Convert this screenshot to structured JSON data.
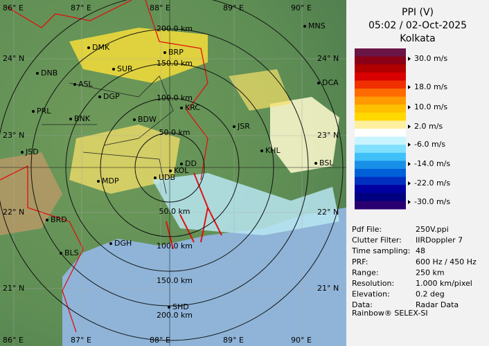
{
  "map": {
    "lon_labels": [
      "86° E",
      "87° E",
      "88° E",
      "89° E",
      "90° E"
    ],
    "lat_labels": [
      "24° N",
      "23° N",
      "22° N",
      "21° N"
    ],
    "ring_labels": [
      "50.0 km",
      "100.0 km",
      "150.0 km",
      "200.0 km"
    ],
    "cities": [
      "MNS",
      "DMK",
      "BRP",
      "DNB",
      "SUR",
      "ASL",
      "DGP",
      "DCA",
      "KRC",
      "PRL",
      "BNK",
      "BDW",
      "JSR",
      "JSD",
      "KHL",
      "DD",
      "KOL",
      "BSL",
      "MDP",
      "UDB",
      "BRD",
      "DGH",
      "BLS",
      "SHD"
    ]
  },
  "panel": {
    "title": "PPI (V)",
    "datetime": "05:02 / 02-Oct-2025",
    "station": "Kolkata",
    "scale_labels": [
      "30.0 m/s",
      "18.0 m/s",
      "10.0 m/s",
      "2.0 m/s",
      "-6.0 m/s",
      "-14.0 m/s",
      "-22.0 m/s",
      "-30.0 m/s"
    ],
    "info": [
      [
        "Pdf File:",
        "250V.ppi"
      ],
      [
        "Clutter Filter:",
        "IIRDoppler 7"
      ],
      [
        "Time sampling:",
        "48"
      ],
      [
        "PRF:",
        "600 Hz / 450 Hz"
      ],
      [
        "Range:",
        "250 km"
      ],
      [
        "Resolution:",
        "1.000 km/pixel"
      ],
      [
        "Elevation:",
        "0.2 deg"
      ],
      [
        "Data:",
        "Radar Data"
      ]
    ],
    "footer": "Rainbow® SELEX-SI"
  }
}
